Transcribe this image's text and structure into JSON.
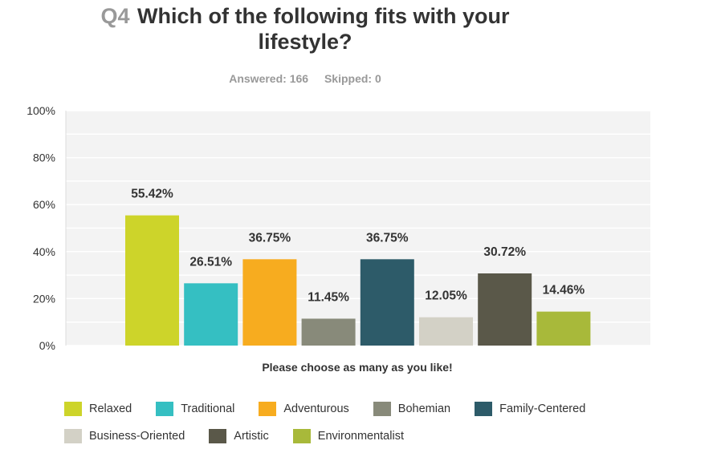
{
  "header": {
    "question_number": "Q4",
    "title_line1": "Which of the following fits with your",
    "title_line2": "lifestyle?",
    "answered": "Answered: 166",
    "skipped": "Skipped: 0"
  },
  "chart_data": {
    "type": "bar",
    "title": "Which of the following fits with your lifestyle?",
    "xlabel": "Please choose as many as you like!",
    "ylabel": "",
    "ylim": [
      0,
      100
    ],
    "yticks": [
      "0%",
      "20%",
      "40%",
      "60%",
      "80%",
      "100%"
    ],
    "grid": true,
    "legend_position": "bottom",
    "categories": [
      "Relaxed",
      "Traditional",
      "Adventurous",
      "Bohemian",
      "Family-Centered",
      "Business-Oriented",
      "Artistic",
      "Environmentalist"
    ],
    "values": [
      55.42,
      26.51,
      36.75,
      11.45,
      36.75,
      12.05,
      30.72,
      14.46
    ],
    "value_labels": [
      "55.42%",
      "26.51%",
      "36.75%",
      "11.45%",
      "36.75%",
      "12.05%",
      "30.72%",
      "14.46%"
    ],
    "colors": [
      "#cdd42a",
      "#35bfc2",
      "#f7ac1f",
      "#888a7a",
      "#2d5b69",
      "#d3d1c6",
      "#5a5849",
      "#a8b93a"
    ]
  }
}
